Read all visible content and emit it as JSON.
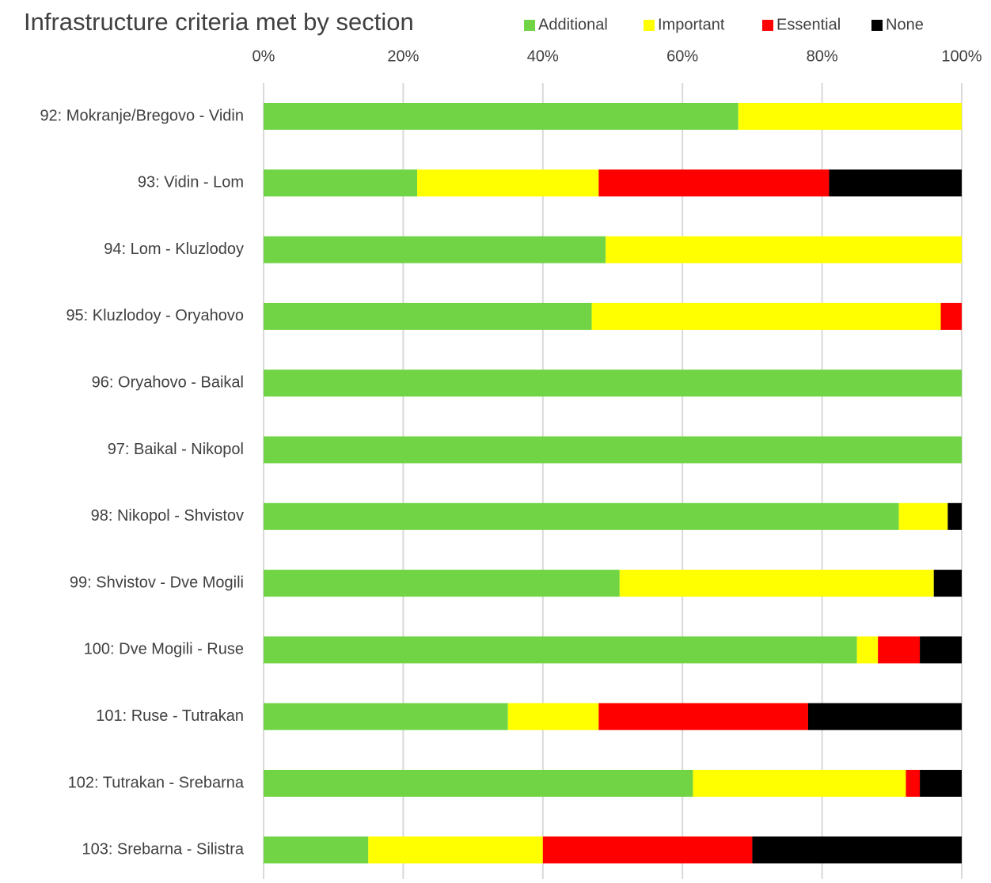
{
  "chart_data": {
    "type": "stacked-barh",
    "title": "Infrastructure criteria met by section",
    "categories": [
      "92: Mokranje/Bregovo - Vidin",
      "93: Vidin - Lom",
      "94: Lom - Kluzlodoy",
      "95: Kluzlodoy - Oryahovo",
      "96: Oryahovo - Baikal",
      "97: Baikal - Nikopol",
      "98: Nikopol - Shvistov",
      "99: Shvistov - Dve Mogili",
      "100: Dve Mogili - Ruse",
      "101: Ruse - Tutrakan",
      "102: Tutrakan - Srebarna",
      "103: Srebarna - Silistra"
    ],
    "series": [
      {
        "name": "Additional",
        "color": "#70d444",
        "values": [
          68,
          22,
          49,
          47,
          100,
          100,
          91,
          51,
          85,
          35,
          61.5,
          15
        ]
      },
      {
        "name": "Important",
        "color": "#ffff00",
        "values": [
          32,
          26,
          51,
          50,
          0,
          0,
          7,
          45,
          3,
          13,
          30.5,
          25
        ]
      },
      {
        "name": "Essential",
        "color": "#ff0000",
        "values": [
          0,
          33,
          0,
          3,
          0,
          0,
          0,
          0,
          6,
          30,
          2,
          30
        ]
      },
      {
        "name": "None",
        "color": "#000000",
        "values": [
          0,
          19,
          0,
          0,
          0,
          0,
          2,
          4,
          6,
          22,
          6,
          30
        ]
      }
    ],
    "xlim": [
      0,
      100
    ],
    "xticks": [
      {
        "value": 0,
        "label": "0%"
      },
      {
        "value": 20,
        "label": "20%"
      },
      {
        "value": 40,
        "label": "40%"
      },
      {
        "value": 60,
        "label": "60%"
      },
      {
        "value": 80,
        "label": "80%"
      },
      {
        "value": 100,
        "label": "100%"
      }
    ],
    "grid": true,
    "legend": "top"
  }
}
